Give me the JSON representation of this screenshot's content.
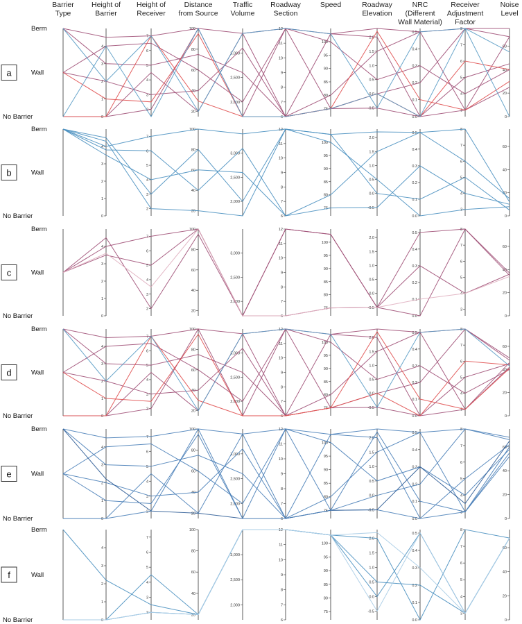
{
  "chart_data": {
    "type": "parallel-coordinates",
    "dimensions": [
      {
        "key": "barrier",
        "label": [
          "Barrier",
          "Type"
        ],
        "categorical": true,
        "categories": [
          "Berm",
          "Wall",
          "No Barrier"
        ]
      },
      {
        "key": "hbar",
        "label": [
          "Height of",
          "Barrier"
        ],
        "ticks": [
          "0",
          "1",
          "2",
          "3",
          "4"
        ],
        "range": [
          0,
          5
        ]
      },
      {
        "key": "hrec",
        "label": [
          "Height of",
          "Receiver"
        ],
        "ticks": [
          "2",
          "3",
          "4",
          "5",
          "6",
          "7"
        ],
        "range": [
          1.5,
          7.5
        ]
      },
      {
        "key": "dist",
        "label": [
          "Distance",
          "from Source"
        ],
        "ticks": [
          "20",
          "40",
          "60",
          "80",
          "100"
        ],
        "range": [
          15,
          100
        ]
      },
      {
        "key": "traffic",
        "label": [
          "Traffic",
          "Volume"
        ],
        "ticks": [
          "2,000",
          "2,500",
          "3,000"
        ],
        "range": [
          1700,
          3500
        ]
      },
      {
        "key": "section",
        "label": [
          "Roadway",
          "Section"
        ],
        "ticks": [
          "6",
          "7",
          "8",
          "9",
          "10",
          "11",
          "12"
        ],
        "range": [
          6,
          12
        ]
      },
      {
        "key": "speed",
        "label": [
          "Speed"
        ],
        "ticks": [
          "75",
          "80",
          "85",
          "90",
          "95",
          "100"
        ],
        "range": [
          72,
          105
        ]
      },
      {
        "key": "elev",
        "label": [
          "Roadway",
          "Elevation"
        ],
        "ticks": [
          "-0.5",
          "0.0",
          "0.5",
          "1.0",
          "1.5",
          "2.0"
        ],
        "range": [
          -0.8,
          2.3
        ]
      },
      {
        "key": "nrc",
        "label": [
          "NRC",
          "(Different",
          "Wall Material)"
        ],
        "ticks": [
          "0.0",
          "0.1",
          "0.2",
          "0.3",
          "0.4",
          "0.5"
        ],
        "range": [
          0,
          0.52
        ]
      },
      {
        "key": "raf",
        "label": [
          "Receiver",
          "Adjustment",
          "Factor"
        ],
        "ticks": [
          "3",
          "4",
          "5",
          "6",
          "7",
          "8"
        ],
        "range": [
          2.6,
          8
        ]
      },
      {
        "key": "noise",
        "label": [
          "Noise",
          "Level"
        ],
        "ticks": [
          "0",
          "20",
          "40",
          "60"
        ],
        "range": [
          0,
          75
        ]
      }
    ],
    "panels": [
      {
        "label": "a",
        "lines": [
          {
            "color": "#a05077",
            "values": [
              "Berm",
              4.5,
              7.0,
              100,
              3400,
              12,
              103,
              2.3,
              0.5,
              8.0,
              68
            ]
          },
          {
            "color": "#a05077",
            "values": [
              "Berm",
              3.0,
              5.0,
              75,
              2600,
              6,
              75,
              -0.5,
              0.0,
              5.0,
              45
            ]
          },
          {
            "color": "#a05077",
            "values": [
              "Wall",
              4.0,
              6.5,
              60,
              2000,
              12,
              100,
              0.5,
              0.3,
              4.0,
              40
            ]
          },
          {
            "color": "#a05077",
            "values": [
              "Wall",
              2.0,
              3.0,
              40,
              3100,
              6,
              80,
              1.5,
              0.5,
              3.0,
              25
            ]
          },
          {
            "color": "#a05077",
            "values": [
              "No Barrier",
              0,
              2.0,
              100,
              1700,
              12,
              75,
              0.0,
              0.2,
              8.0,
              75
            ]
          },
          {
            "color": "#a05077",
            "values": [
              "No Barrier",
              0,
              4.5,
              20,
              3400,
              6,
              103,
              2.0,
              0.0,
              3.0,
              68
            ]
          },
          {
            "color": "#e05050",
            "values": [
              "No Barrier",
              0,
              7.0,
              30,
              1700,
              6,
              75,
              0.0,
              0.0,
              6.0,
              40
            ]
          },
          {
            "color": "#e05050",
            "values": [
              "Wall",
              1.0,
              2.5,
              95,
              1700,
              6,
              75,
              2.2,
              0.1,
              3.0,
              30
            ]
          },
          {
            "color": "#5a9cc5",
            "values": [
              "Berm",
              2.0,
              7.0,
              20,
              3400,
              12,
              103,
              -0.5,
              0.5,
              8.0,
              55
            ]
          },
          {
            "color": "#5a9cc5",
            "values": [
              "No Barrier",
              4.0,
              1.5,
              100,
              1700,
              6,
              75,
              0.0,
              0.0,
              8.0,
              0
            ]
          }
        ]
      },
      {
        "label": "b",
        "lines": [
          {
            "color": "#4a90c0",
            "values": [
              "Berm",
              4.0,
              7.0,
              100,
              3400,
              12,
              103,
              2.2,
              0.5,
              8.0,
              12
            ]
          },
          {
            "color": "#4a90c0",
            "values": [
              "Berm",
              3.5,
              4.0,
              60,
              2600,
              6,
              75,
              -0.5,
              0.3,
              4.0,
              10
            ]
          },
          {
            "color": "#4a90c0",
            "values": [
              "Berm",
              4.3,
              2.0,
              20,
              1700,
              12,
              100,
              0.5,
              0.0,
              3.0,
              8
            ]
          },
          {
            "color": "#4a90c0",
            "values": [
              "Berm",
              3.8,
              6.0,
              40,
              3100,
              6,
              80,
              1.5,
              0.5,
              6.0,
              15
            ]
          },
          {
            "color": "#4a90c0",
            "values": [
              "Berm",
              4.5,
              3.0,
              80,
              2000,
              12,
              103,
              0.0,
              0.1,
              5.0,
              5
            ]
          }
        ]
      },
      {
        "label": "c",
        "lines": [
          {
            "color": "#a05077",
            "values": [
              "Wall",
              4.0,
              7.0,
              100,
              1700,
              12,
              103,
              -0.5,
              0.5,
              8.0,
              37
            ]
          },
          {
            "color": "#a05077",
            "values": [
              "Wall",
              3.5,
              5.0,
              100,
              1700,
              6,
              75,
              -0.5,
              0.3,
              4.0,
              36
            ]
          },
          {
            "color": "#a05077",
            "values": [
              "Wall",
              4.5,
              2.0,
              95,
              1700,
              12,
              103,
              -0.5,
              0.0,
              8.0,
              35
            ]
          },
          {
            "color": "#e0b0c0",
            "values": [
              "Wall",
              3.6,
              3.5,
              100,
              1700,
              6,
              75,
              -0.5,
              0.1,
              4.0,
              34
            ]
          }
        ]
      },
      {
        "label": "d",
        "lines": [
          {
            "color": "#a05077",
            "values": [
              "Berm",
              4.5,
              7.0,
              100,
              3400,
              12,
              103,
              2.3,
              0.5,
              8.0,
              50
            ]
          },
          {
            "color": "#a05077",
            "values": [
              "Berm",
              3.0,
              5.0,
              75,
              2600,
              6,
              75,
              -0.5,
              0.0,
              5.0,
              45
            ]
          },
          {
            "color": "#a05077",
            "values": [
              "Wall",
              4.0,
              6.5,
              60,
              2000,
              12,
              100,
              0.5,
              0.3,
              4.0,
              40
            ]
          },
          {
            "color": "#a05077",
            "values": [
              "Wall",
              2.0,
              3.0,
              40,
              3100,
              6,
              80,
              1.5,
              0.5,
              3.0,
              42
            ]
          },
          {
            "color": "#a05077",
            "values": [
              "No Barrier",
              0,
              2.0,
              100,
              1700,
              12,
              75,
              0.0,
              0.2,
              8.0,
              48
            ]
          },
          {
            "color": "#a05077",
            "values": [
              "No Barrier",
              0,
              4.5,
              20,
              3400,
              6,
              103,
              2.0,
              0.0,
              3.0,
              46
            ]
          },
          {
            "color": "#e05050",
            "values": [
              "No Barrier",
              0,
              7.0,
              30,
              1700,
              6,
              75,
              0.0,
              0.0,
              6.0,
              44
            ]
          },
          {
            "color": "#e05050",
            "values": [
              "Wall",
              1.0,
              2.5,
              95,
              1700,
              6,
              75,
              2.2,
              0.1,
              3.0,
              41
            ]
          },
          {
            "color": "#5a9cc5",
            "values": [
              "Berm",
              2.0,
              7.0,
              20,
              3400,
              12,
              103,
              -0.5,
              0.5,
              8.0,
              43
            ]
          }
        ]
      },
      {
        "label": "e",
        "lines": [
          {
            "color": "#4a7fb8",
            "values": [
              "Berm",
              4.5,
              7.0,
              100,
              3400,
              12,
              103,
              2.3,
              0.5,
              8.0,
              68
            ]
          },
          {
            "color": "#4a7fb8",
            "values": [
              "Berm",
              3.0,
              5.0,
              75,
              2600,
              6,
              75,
              -0.5,
              0.0,
              5.0,
              62
            ]
          },
          {
            "color": "#4a7fb8",
            "values": [
              "Wall",
              4.0,
              6.5,
              60,
              2000,
              12,
              100,
              0.5,
              0.3,
              4.0,
              58
            ]
          },
          {
            "color": "#4a7fb8",
            "values": [
              "Wall",
              2.0,
              3.0,
              40,
              3100,
              6,
              80,
              1.5,
              0.5,
              3.0,
              60
            ]
          },
          {
            "color": "#2e5c96",
            "values": [
              "Berm",
              2.2,
              2.0,
              20,
              1700,
              6,
              75,
              -0.5,
              0.3,
              3.5,
              65
            ]
          },
          {
            "color": "#4a7fb8",
            "values": [
              "No Barrier",
              0,
              4.5,
              20,
              3400,
              6,
              103,
              2.0,
              0.0,
              3.0,
              55
            ]
          },
          {
            "color": "#4a7fb8",
            "values": [
              "No Barrier",
              0,
              2.0,
              100,
              1700,
              12,
              75,
              0.0,
              0.2,
              8.0,
              66
            ]
          },
          {
            "color": "#4a7fb8",
            "values": [
              "Wall",
              1.0,
              2.5,
              95,
              1700,
              6,
              75,
              2.2,
              0.1,
              3.0,
              52
            ]
          }
        ]
      },
      {
        "label": "f",
        "lines": [
          {
            "color": "#4a90c0",
            "values": [
              "Berm",
              2.2,
              2.5,
              20,
              3500,
              12,
              103,
              0.0,
              0.5,
              3.0,
              68
            ]
          },
          {
            "color": "#4a90c0",
            "values": [
              "No Barrier",
              0,
              2.0,
              20,
              3500,
              12,
              103,
              2.0,
              0.0,
              8.0,
              68
            ]
          },
          {
            "color": "#4a90c0",
            "values": [
              "No Barrier",
              0,
              4.5,
              20,
              3500,
              12,
              103,
              0.5,
              0.2,
              3.0,
              68
            ]
          },
          {
            "color": "#a8cce6",
            "values": [
              "No Barrier",
              0,
              2.0,
              20,
              3500,
              12,
              103,
              2.2,
              0.3,
              3.0,
              68
            ]
          },
          {
            "color": "#a8cce6",
            "values": [
              "No Barrier",
              0,
              2.0,
              20,
              3500,
              12,
              103,
              -0.5,
              0.5,
              3.0,
              68
            ]
          }
        ]
      }
    ]
  }
}
